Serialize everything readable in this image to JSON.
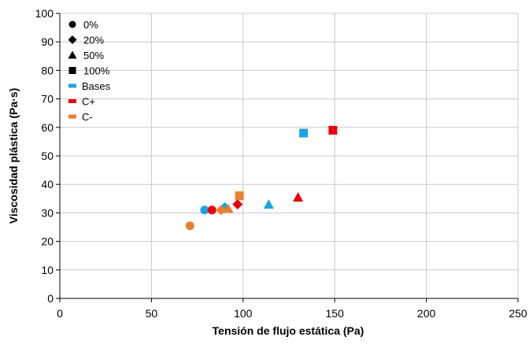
{
  "chart_data": {
    "type": "scatter",
    "title": "",
    "xlabel": "Tensión de flujo estática (Pa)",
    "ylabel": "Viscosidad plástica (Pa·s)",
    "xlim": [
      0,
      250
    ],
    "ylim": [
      0,
      100
    ],
    "xticks": [
      0,
      50,
      100,
      150,
      200,
      250
    ],
    "yticks": [
      0,
      10,
      20,
      30,
      40,
      50,
      60,
      70,
      80,
      90,
      100
    ],
    "grid": true,
    "legend_placement": "top-left",
    "colors": {
      "Bases": "#1fa2e0",
      "C+": "#e8000b",
      "C-": "#e8802e",
      "legend_marker": "#000000",
      "grid": "#c8c8c8",
      "axis": "#000000"
    },
    "legend": [
      {
        "label": "0%",
        "marker": "circle",
        "color": "#000000"
      },
      {
        "label": "20%",
        "marker": "diamond",
        "color": "#000000"
      },
      {
        "label": "50%",
        "marker": "triangle",
        "color": "#000000"
      },
      {
        "label": "100%",
        "marker": "square",
        "color": "#000000"
      },
      {
        "label": "Bases",
        "marker": "dash",
        "color": "#1fa2e0"
      },
      {
        "label": "C+",
        "marker": "dash",
        "color": "#e8000b"
      },
      {
        "label": "C-",
        "marker": "dash",
        "color": "#e8802e"
      }
    ],
    "points": [
      {
        "group": "Bases",
        "level": "0%",
        "marker": "circle",
        "x": 79,
        "y": 31
      },
      {
        "group": "Bases",
        "level": "20%",
        "marker": "diamond",
        "x": 90,
        "y": 32
      },
      {
        "group": "Bases",
        "level": "50%",
        "marker": "triangle",
        "x": 114,
        "y": 33
      },
      {
        "group": "Bases",
        "level": "100%",
        "marker": "square",
        "x": 133,
        "y": 58
      },
      {
        "group": "C+",
        "level": "0%",
        "marker": "circle",
        "x": 83,
        "y": 31
      },
      {
        "group": "C+",
        "level": "20%",
        "marker": "diamond",
        "x": 97,
        "y": 33
      },
      {
        "group": "C+",
        "level": "50%",
        "marker": "triangle",
        "x": 130,
        "y": 35.5
      },
      {
        "group": "C+",
        "level": "100%",
        "marker": "square",
        "x": 149,
        "y": 59
      },
      {
        "group": "C-",
        "level": "0%",
        "marker": "circle",
        "x": 71,
        "y": 25.5
      },
      {
        "group": "C-",
        "level": "20%",
        "marker": "diamond",
        "x": 88,
        "y": 31
      },
      {
        "group": "C-",
        "level": "50%",
        "marker": "triangle",
        "x": 92,
        "y": 31.5
      },
      {
        "group": "C-",
        "level": "100%",
        "marker": "square",
        "x": 98,
        "y": 36
      }
    ]
  }
}
